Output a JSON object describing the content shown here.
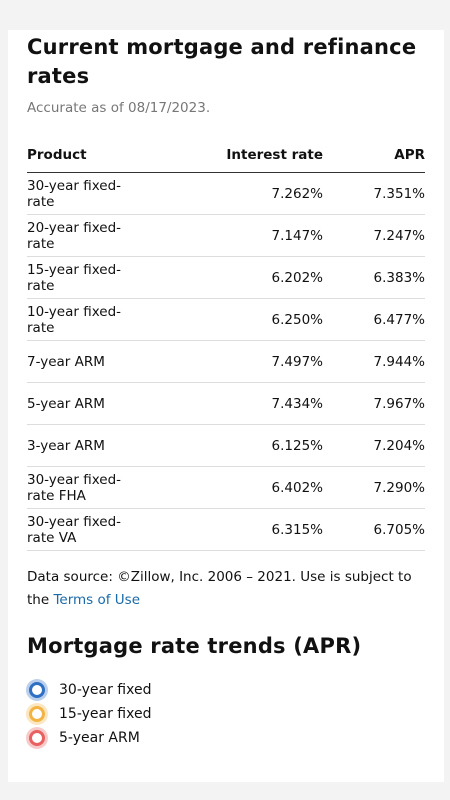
{
  "header": {
    "title": "Current mortgage and refinance rates",
    "subtitle": "Accurate as of 08/17/2023."
  },
  "table": {
    "columns": [
      "Product",
      "Interest rate",
      "APR"
    ],
    "rows": [
      [
        "30-year fixed-rate",
        "7.262%",
        "7.351%"
      ],
      [
        "20-year fixed-rate",
        "7.147%",
        "7.247%"
      ],
      [
        "15-year fixed-rate",
        "6.202%",
        "6.383%"
      ],
      [
        "10-year fixed-rate",
        "6.250%",
        "6.477%"
      ],
      [
        "7-year ARM",
        "7.497%",
        "7.944%"
      ],
      [
        "5-year ARM",
        "7.434%",
        "7.967%"
      ],
      [
        "3-year ARM",
        "6.125%",
        "7.204%"
      ],
      [
        "30-year fixed-rate FHA",
        "6.402%",
        "7.290%"
      ],
      [
        "30-year fixed-rate VA",
        "6.315%",
        "6.705%"
      ]
    ]
  },
  "source": {
    "text": "Data source: ©Zillow, Inc. 2006 – 2021. Use is subject to the",
    "link": "Terms of Use"
  },
  "trends": {
    "title": "Mortgage rate trends (APR)",
    "legend": [
      {
        "name": "30-year fixed",
        "color": "#2f6fc4"
      },
      {
        "name": "15-year fixed",
        "color": "#f2b544"
      },
      {
        "name": "5-year ARM",
        "color": "#e8605f"
      }
    ]
  }
}
